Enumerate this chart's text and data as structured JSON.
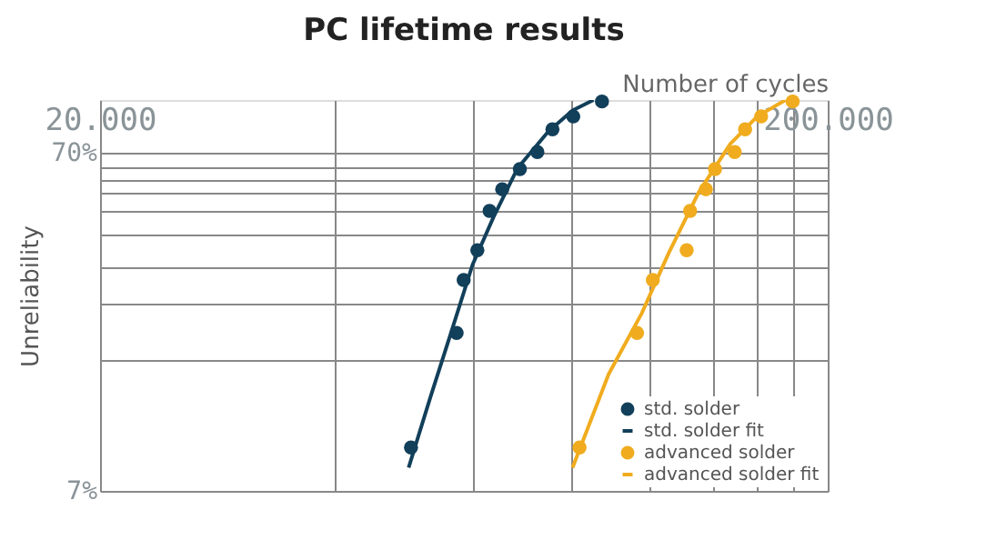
{
  "chart_data": {
    "type": "scatter",
    "title": "PC lifetime results",
    "xlabel": "Number of cycles",
    "ylabel": "Unreliability",
    "log": "xy",
    "grid": true,
    "legend": "bottom right",
    "xlim": [
      20000,
      200000
    ],
    "ylim": [
      7,
      100
    ],
    "xticks": [
      {
        "value": 20000,
        "label": "20.000"
      },
      {
        "value": 42000,
        "label": null
      },
      {
        "value": 65000,
        "label": null
      },
      {
        "value": 89000,
        "label": null
      },
      {
        "value": 114000,
        "label": null
      },
      {
        "value": 139000,
        "label": null
      },
      {
        "value": 160000,
        "label": null
      },
      {
        "value": 179000,
        "label": null
      },
      {
        "value": 200000,
        "label": "200.000"
      }
    ],
    "yticks": [
      {
        "value": 7,
        "label": "7%"
      },
      {
        "value": 17,
        "label": null
      },
      {
        "value": 25,
        "label": null
      },
      {
        "value": 32,
        "label": null
      },
      {
        "value": 40,
        "label": null
      },
      {
        "value": 47,
        "label": null
      },
      {
        "value": 53,
        "label": null
      },
      {
        "value": 58,
        "label": null
      },
      {
        "value": 63,
        "label": null
      },
      {
        "value": 70,
        "label": "70%"
      }
    ],
    "series": [
      {
        "name": "std. solder",
        "type": "scatter",
        "marker": "circle",
        "color": "#123f5a",
        "x": [
          53500,
          61800,
          63200,
          66000,
          68600,
          71400,
          75500,
          79800,
          83700,
          89400,
          97900
        ],
        "values": [
          9.4,
          20.5,
          29.4,
          36,
          47,
          54.5,
          62.5,
          70.2,
          81.9,
          89.4,
          99
        ]
      },
      {
        "name": "std. solder fit",
        "type": "line",
        "marker": "none",
        "color": "#123f5a",
        "x": [
          53100,
          56800,
          60800,
          65000,
          69500,
          75000,
          82600,
          89200,
          95300
        ],
        "values": [
          8.2,
          13.1,
          20.7,
          32.6,
          45.2,
          63,
          80.7,
          93.1,
          100
        ]
      },
      {
        "name": "advanced solder",
        "type": "scatter",
        "marker": "circle",
        "color": "#f0ac1e",
        "x": [
          91200,
          109400,
          115000,
          128000,
          129400,
          136000,
          140000,
          149000,
          154000,
          162000,
          179000
        ],
        "values": [
          9.4,
          20.5,
          29.4,
          36,
          47,
          54.5,
          62.5,
          70.2,
          81.9,
          89.4,
          99
        ]
      },
      {
        "name": "advanced solder fit",
        "type": "line",
        "marker": "none",
        "color": "#f0ac1e",
        "x": [
          89200,
          100000,
          111000,
          121000,
          133000,
          147000,
          160000,
          175000
        ],
        "values": [
          8.2,
          15.5,
          23.4,
          35.4,
          53.4,
          74.3,
          89.4,
          100
        ]
      }
    ]
  }
}
